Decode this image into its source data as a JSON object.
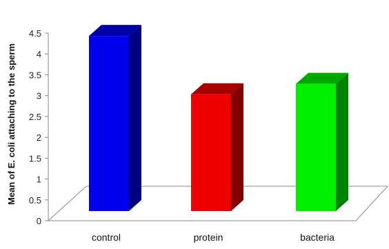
{
  "chart_data": {
    "type": "bar",
    "style": "3d",
    "title": "",
    "xlabel": "",
    "ylabel": "Mean of E. coli attaching to the sperm",
    "categories": [
      "control",
      "protein",
      "bacteria"
    ],
    "values": [
      4.2,
      2.8,
      3.05
    ],
    "colors": [
      "#0000ee",
      "#ee0000",
      "#00ee00"
    ],
    "ylim": [
      0,
      4.5
    ],
    "yticks": [
      "0",
      "0.5",
      "1",
      "1.5",
      "2",
      "2.5",
      "3",
      "3.5",
      "4",
      "4.5"
    ],
    "grid": false,
    "legend": "none"
  }
}
